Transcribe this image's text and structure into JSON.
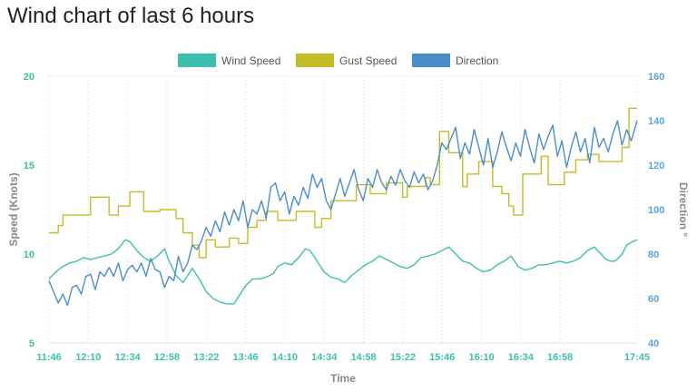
{
  "page": {
    "title": "Wind chart of last 6 hours"
  },
  "chart_data": {
    "type": "line",
    "title": "Wind chart of last 6 hours",
    "xlabel": "Time",
    "ylabel_left": "Speed (Knots)",
    "ylabel_right": "Direction °",
    "ylim_left": [
      5,
      20
    ],
    "ylim_right": [
      40,
      160
    ],
    "yticks_left": [
      "5",
      "10",
      "15",
      "20"
    ],
    "yticks_right": [
      "40",
      "60",
      "80",
      "100",
      "120",
      "140",
      "160"
    ],
    "x_ticks": [
      "11:46",
      "12:10",
      "12:34",
      "12:58",
      "13:22",
      "13:46",
      "14:10",
      "14:34",
      "14:58",
      "15:22",
      "15:46",
      "16:10",
      "16:34",
      "16:58",
      "17:45"
    ],
    "grid": "vertical-dotted",
    "legend": "top",
    "colors": {
      "wind": "#3dbfad",
      "gust": "#c2bd25",
      "direction": "#4b8ec8",
      "tick_left": "#3dbfad",
      "tick_right": "#5aa3d6"
    },
    "series": [
      {
        "name": "Wind Speed",
        "axis": "left",
        "points": [
          [
            0,
            8.6
          ],
          [
            6,
            9.0
          ],
          [
            12,
            9.3
          ],
          [
            18,
            9.5
          ],
          [
            24,
            9.6
          ],
          [
            30,
            9.8
          ],
          [
            36,
            9.7
          ],
          [
            42,
            9.8
          ],
          [
            48,
            9.9
          ],
          [
            54,
            10.0
          ],
          [
            60,
            10.3
          ],
          [
            66,
            10.8
          ],
          [
            70,
            10.7
          ],
          [
            76,
            10.2
          ],
          [
            82,
            9.8
          ],
          [
            88,
            9.6
          ],
          [
            94,
            9.9
          ],
          [
            100,
            10.3
          ],
          [
            104,
            9.6
          ],
          [
            110,
            8.8
          ],
          [
            116,
            8.4
          ],
          [
            120,
            8.8
          ],
          [
            124,
            9.2
          ],
          [
            130,
            8.6
          ],
          [
            136,
            7.9
          ],
          [
            142,
            7.5
          ],
          [
            148,
            7.3
          ],
          [
            154,
            7.2
          ],
          [
            160,
            7.2
          ],
          [
            164,
            7.6
          ],
          [
            170,
            8.2
          ],
          [
            176,
            8.6
          ],
          [
            182,
            8.6
          ],
          [
            188,
            8.7
          ],
          [
            194,
            8.9
          ],
          [
            198,
            9.3
          ],
          [
            204,
            9.5
          ],
          [
            210,
            9.4
          ],
          [
            216,
            9.8
          ],
          [
            222,
            10.3
          ],
          [
            226,
            10.2
          ],
          [
            232,
            9.6
          ],
          [
            238,
            9.0
          ],
          [
            244,
            8.7
          ],
          [
            250,
            8.6
          ],
          [
            256,
            8.4
          ],
          [
            262,
            8.8
          ],
          [
            268,
            9.1
          ],
          [
            274,
            9.4
          ],
          [
            280,
            9.6
          ],
          [
            286,
            9.9
          ],
          [
            292,
            9.7
          ],
          [
            298,
            9.5
          ],
          [
            304,
            9.3
          ],
          [
            310,
            9.2
          ],
          [
            316,
            9.4
          ],
          [
            322,
            9.8
          ],
          [
            328,
            9.9
          ],
          [
            334,
            10.0
          ],
          [
            340,
            10.2
          ],
          [
            346,
            10.4
          ],
          [
            352,
            10.0
          ],
          [
            358,
            9.6
          ],
          [
            364,
            9.5
          ],
          [
            370,
            9.2
          ],
          [
            376,
            9.0
          ],
          [
            382,
            9.1
          ],
          [
            388,
            9.4
          ],
          [
            394,
            9.6
          ],
          [
            400,
            9.9
          ],
          [
            406,
            9.3
          ],
          [
            412,
            9.1
          ],
          [
            418,
            9.2
          ],
          [
            424,
            9.4
          ],
          [
            430,
            9.4
          ],
          [
            436,
            9.5
          ],
          [
            442,
            9.6
          ],
          [
            448,
            9.5
          ],
          [
            454,
            9.6
          ],
          [
            460,
            9.8
          ],
          [
            466,
            10.2
          ],
          [
            472,
            10.4
          ],
          [
            478,
            10.0
          ],
          [
            482,
            9.7
          ],
          [
            486,
            9.6
          ],
          [
            490,
            9.6
          ],
          [
            496,
            10.0
          ],
          [
            500,
            10.5
          ],
          [
            505,
            10.7
          ],
          [
            509,
            10.8
          ]
        ]
      },
      {
        "name": "Gust Speed",
        "axis": "left",
        "points": [
          [
            0,
            11.2
          ],
          [
            8,
            11.2
          ],
          [
            8,
            11.6
          ],
          [
            12,
            11.6
          ],
          [
            12,
            12.2
          ],
          [
            36,
            12.2
          ],
          [
            36,
            13.2
          ],
          [
            52,
            13.2
          ],
          [
            52,
            12.2
          ],
          [
            60,
            12.2
          ],
          [
            60,
            12.7
          ],
          [
            70,
            12.7
          ],
          [
            70,
            13.5
          ],
          [
            82,
            13.5
          ],
          [
            82,
            12.4
          ],
          [
            96,
            12.4
          ],
          [
            96,
            12.5
          ],
          [
            110,
            12.5
          ],
          [
            110,
            12.0
          ],
          [
            116,
            12.0
          ],
          [
            116,
            11.2
          ],
          [
            124,
            11.2
          ],
          [
            124,
            10.5
          ],
          [
            130,
            10.5
          ],
          [
            130,
            9.8
          ],
          [
            136,
            9.8
          ],
          [
            136,
            10.8
          ],
          [
            144,
            10.8
          ],
          [
            144,
            10.4
          ],
          [
            156,
            10.4
          ],
          [
            156,
            10.9
          ],
          [
            164,
            10.9
          ],
          [
            164,
            10.6
          ],
          [
            172,
            10.6
          ],
          [
            172,
            11.5
          ],
          [
            180,
            11.5
          ],
          [
            180,
            11.9
          ],
          [
            188,
            11.9
          ],
          [
            188,
            12.4
          ],
          [
            198,
            12.4
          ],
          [
            198,
            11.9
          ],
          [
            214,
            11.9
          ],
          [
            214,
            12.4
          ],
          [
            230,
            12.4
          ],
          [
            230,
            11.5
          ],
          [
            236,
            11.5
          ],
          [
            236,
            12.0
          ],
          [
            244,
            12.0
          ],
          [
            244,
            13.0
          ],
          [
            266,
            13.0
          ],
          [
            266,
            13.9
          ],
          [
            278,
            13.9
          ],
          [
            278,
            13.4
          ],
          [
            292,
            13.4
          ],
          [
            292,
            14.0
          ],
          [
            306,
            14.0
          ],
          [
            306,
            13.2
          ],
          [
            310,
            13.2
          ],
          [
            310,
            13.8
          ],
          [
            326,
            13.8
          ],
          [
            326,
            14.3
          ],
          [
            330,
            14.3
          ],
          [
            330,
            13.9
          ],
          [
            338,
            13.9
          ],
          [
            338,
            16.9
          ],
          [
            346,
            16.9
          ],
          [
            346,
            15.7
          ],
          [
            358,
            15.7
          ],
          [
            358,
            13.8
          ],
          [
            362,
            13.8
          ],
          [
            362,
            14.5
          ],
          [
            372,
            14.5
          ],
          [
            372,
            15.2
          ],
          [
            384,
            15.2
          ],
          [
            384,
            13.8
          ],
          [
            392,
            13.8
          ],
          [
            392,
            13.4
          ],
          [
            398,
            13.4
          ],
          [
            398,
            12.7
          ],
          [
            402,
            12.7
          ],
          [
            402,
            12.2
          ],
          [
            410,
            12.2
          ],
          [
            410,
            14.5
          ],
          [
            426,
            14.5
          ],
          [
            426,
            15.5
          ],
          [
            432,
            15.5
          ],
          [
            432,
            13.9
          ],
          [
            446,
            13.9
          ],
          [
            446,
            14.6
          ],
          [
            456,
            14.6
          ],
          [
            456,
            15.3
          ],
          [
            466,
            15.3
          ],
          [
            466,
            15.6
          ],
          [
            476,
            15.6
          ],
          [
            476,
            15.2
          ],
          [
            496,
            15.2
          ],
          [
            496,
            16.0
          ],
          [
            502,
            16.0
          ],
          [
            502,
            18.2
          ],
          [
            509,
            18.2
          ]
        ]
      },
      {
        "name": "Direction",
        "axis": "right",
        "points": [
          [
            0,
            68
          ],
          [
            4,
            63
          ],
          [
            8,
            58
          ],
          [
            12,
            62
          ],
          [
            16,
            57
          ],
          [
            20,
            65
          ],
          [
            24,
            66
          ],
          [
            28,
            62
          ],
          [
            32,
            70
          ],
          [
            36,
            71
          ],
          [
            40,
            64
          ],
          [
            44,
            72
          ],
          [
            48,
            70
          ],
          [
            52,
            74
          ],
          [
            56,
            70
          ],
          [
            60,
            76
          ],
          [
            64,
            68
          ],
          [
            68,
            73
          ],
          [
            72,
            75
          ],
          [
            76,
            72
          ],
          [
            80,
            76
          ],
          [
            84,
            70
          ],
          [
            88,
            78
          ],
          [
            92,
            73
          ],
          [
            96,
            72
          ],
          [
            100,
            65
          ],
          [
            104,
            70
          ],
          [
            108,
            68
          ],
          [
            112,
            79
          ],
          [
            116,
            72
          ],
          [
            120,
            76
          ],
          [
            124,
            84
          ],
          [
            128,
            82
          ],
          [
            132,
            86
          ],
          [
            136,
            92
          ],
          [
            140,
            88
          ],
          [
            144,
            95
          ],
          [
            148,
            90
          ],
          [
            152,
            99
          ],
          [
            156,
            93
          ],
          [
            160,
            100
          ],
          [
            164,
            95
          ],
          [
            168,
            104
          ],
          [
            172,
            92
          ],
          [
            176,
            100
          ],
          [
            180,
            98
          ],
          [
            184,
            104
          ],
          [
            188,
            96
          ],
          [
            192,
            110
          ],
          [
            196,
            112
          ],
          [
            200,
            104
          ],
          [
            204,
            108
          ],
          [
            208,
            98
          ],
          [
            212,
            106
          ],
          [
            216,
            102
          ],
          [
            220,
            110
          ],
          [
            224,
            105
          ],
          [
            228,
            116
          ],
          [
            232,
            110
          ],
          [
            236,
            114
          ],
          [
            240,
            104
          ],
          [
            244,
            100
          ],
          [
            248,
            107
          ],
          [
            252,
            114
          ],
          [
            256,
            106
          ],
          [
            260,
            112
          ],
          [
            264,
            118
          ],
          [
            268,
            109
          ],
          [
            272,
            104
          ],
          [
            276,
            114
          ],
          [
            280,
            110
          ],
          [
            284,
            118
          ],
          [
            288,
            112
          ],
          [
            292,
            109
          ],
          [
            296,
            115
          ],
          [
            300,
            111
          ],
          [
            304,
            118
          ],
          [
            308,
            113
          ],
          [
            312,
            110
          ],
          [
            316,
            117
          ],
          [
            320,
            112
          ],
          [
            324,
            116
          ],
          [
            328,
            109
          ],
          [
            332,
            113
          ],
          [
            336,
            120
          ],
          [
            340,
            130
          ],
          [
            344,
            127
          ],
          [
            348,
            132
          ],
          [
            352,
            137
          ],
          [
            356,
            123
          ],
          [
            360,
            130
          ],
          [
            364,
            125
          ],
          [
            368,
            136
          ],
          [
            372,
            128
          ],
          [
            376,
            120
          ],
          [
            380,
            132
          ],
          [
            384,
            119
          ],
          [
            388,
            126
          ],
          [
            392,
            135
          ],
          [
            396,
            128
          ],
          [
            400,
            122
          ],
          [
            404,
            130
          ],
          [
            408,
            124
          ],
          [
            412,
            136
          ],
          [
            416,
            128
          ],
          [
            420,
            121
          ],
          [
            424,
            134
          ],
          [
            428,
            127
          ],
          [
            432,
            133
          ],
          [
            436,
            138
          ],
          [
            440,
            124
          ],
          [
            444,
            131
          ],
          [
            448,
            119
          ],
          [
            452,
            128
          ],
          [
            456,
            135
          ],
          [
            460,
            126
          ],
          [
            464,
            132
          ],
          [
            468,
            121
          ],
          [
            472,
            137
          ],
          [
            476,
            128
          ],
          [
            480,
            132
          ],
          [
            484,
            126
          ],
          [
            488,
            134
          ],
          [
            492,
            140
          ],
          [
            496,
            129
          ],
          [
            500,
            136
          ],
          [
            504,
            131
          ],
          [
            509,
            140
          ]
        ]
      }
    ]
  }
}
